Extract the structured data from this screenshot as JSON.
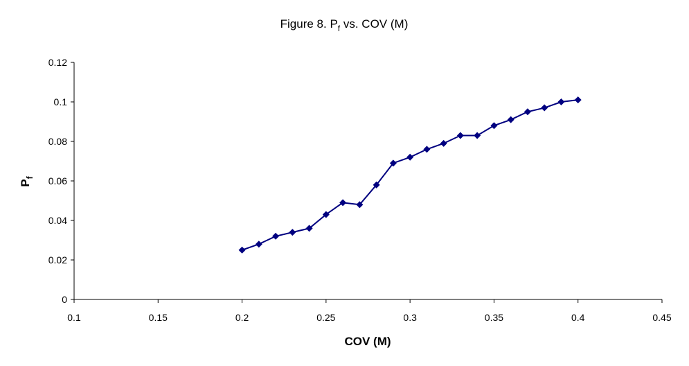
{
  "chart_data": {
    "type": "line",
    "title": {
      "main": "Figure 8.  P",
      "sub": "f",
      "rest": " vs. COV (M)"
    },
    "xlabel": "COV (M)",
    "ylabel": {
      "main": "P",
      "sub": "f"
    },
    "xlim": [
      0.1,
      0.45
    ],
    "ylim": [
      0,
      0.12
    ],
    "xticks": [
      "0.1",
      "0.15",
      "0.2",
      "0.25",
      "0.3",
      "0.35",
      "0.4",
      "0.45"
    ],
    "yticks": [
      "0",
      "0.02",
      "0.04",
      "0.06",
      "0.08",
      "0.1",
      "0.12"
    ],
    "grid": false,
    "legend": "none",
    "series": [
      {
        "name": "Pf",
        "color": "#000080",
        "marker": "diamond",
        "x": [
          0.2,
          0.21,
          0.22,
          0.23,
          0.24,
          0.25,
          0.26,
          0.27,
          0.28,
          0.29,
          0.3,
          0.31,
          0.32,
          0.33,
          0.34,
          0.35,
          0.36,
          0.37,
          0.38,
          0.39,
          0.4
        ],
        "y": [
          0.025,
          0.028,
          0.032,
          0.034,
          0.036,
          0.043,
          0.049,
          0.048,
          0.058,
          0.069,
          0.072,
          0.076,
          0.079,
          0.083,
          0.083,
          0.088,
          0.091,
          0.095,
          0.097,
          0.1,
          0.101
        ]
      }
    ]
  }
}
